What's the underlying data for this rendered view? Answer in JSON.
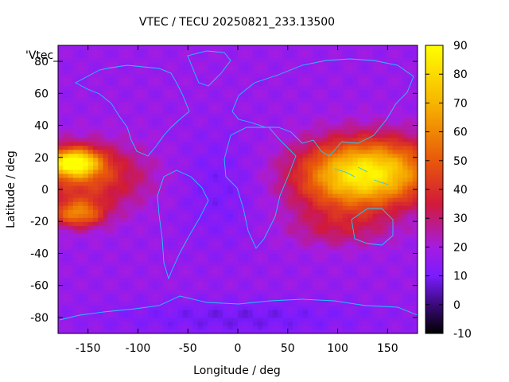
{
  "chart_data": {
    "type": "heatmap",
    "title": "VTEC / TECU 20250821_233.13500",
    "xlabel": "Longitude / deg",
    "ylabel": "Latitude / deg",
    "key_label": "'Vtec_",
    "xlim": [
      -180,
      180
    ],
    "ylim": [
      -90,
      90
    ],
    "x_ticks": [
      -150,
      -100,
      -50,
      0,
      50,
      100,
      150
    ],
    "y_ticks": [
      -80,
      -60,
      -40,
      -20,
      0,
      20,
      40,
      60,
      80
    ],
    "colorbar": {
      "range": [
        -10,
        90
      ],
      "ticks": [
        -10,
        0,
        10,
        20,
        30,
        40,
        50,
        60,
        70,
        80,
        90
      ],
      "colormap": [
        "#000000",
        "#3b0a7a",
        "#7a1cff",
        "#a51ce0",
        "#d11a3a",
        "#e8580a",
        "#f7b500",
        "#ffff00"
      ]
    },
    "background_level": 17,
    "features": [
      {
        "lon": -165,
        "lat": 17,
        "peak": 88,
        "sx": 18,
        "sy": 6
      },
      {
        "lon": -150,
        "lat": 8,
        "peak": 48,
        "sx": 40,
        "sy": 14
      },
      {
        "lon": -160,
        "lat": -15,
        "peak": 58,
        "sx": 18,
        "sy": 6
      },
      {
        "lon": 140,
        "lat": 12,
        "peak": 70,
        "sx": 45,
        "sy": 14
      },
      {
        "lon": 110,
        "lat": 5,
        "peak": 50,
        "sx": 40,
        "sy": 16
      },
      {
        "lon": 100,
        "lat": -25,
        "peak": 30,
        "sx": 35,
        "sy": 8
      },
      {
        "lon": -20,
        "lat": 0,
        "peak": 10,
        "sx": 30,
        "sy": 25
      },
      {
        "lon": 0,
        "lat": -80,
        "peak": 8,
        "sx": 90,
        "sy": 8
      }
    ]
  }
}
